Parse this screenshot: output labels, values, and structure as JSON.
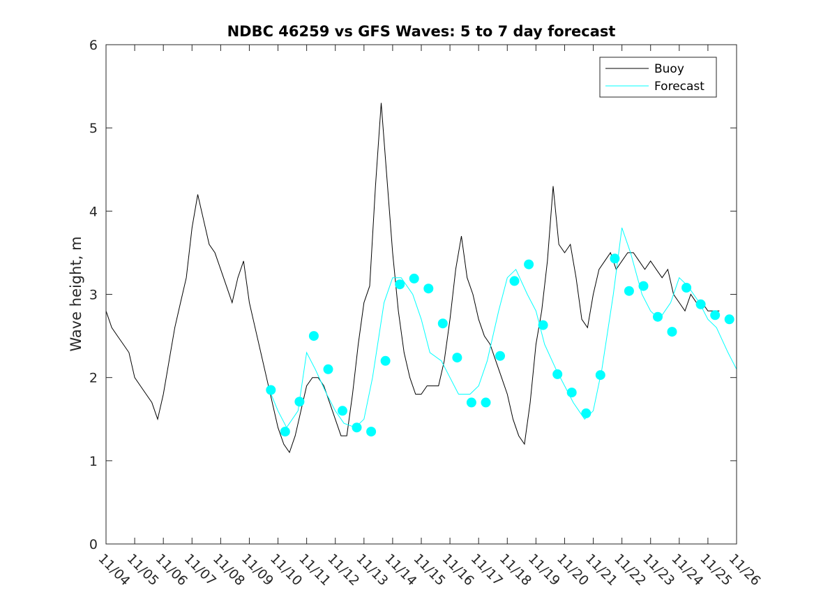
{
  "chart_data": {
    "type": "line",
    "title": "NDBC 46259 vs GFS Waves: 5 to 7 day forecast",
    "xlabel": "",
    "ylabel": "Wave height, m",
    "xlim": [
      0,
      22
    ],
    "ylim": [
      0,
      6
    ],
    "x_tick_values": [
      0,
      1,
      2,
      3,
      4,
      5,
      6,
      7,
      8,
      9,
      10,
      11,
      12,
      13,
      14,
      15,
      16,
      17,
      18,
      19,
      20,
      21,
      22
    ],
    "x_tick_labels": [
      "11/04",
      "11/05",
      "11/06",
      "11/07",
      "11/08",
      "11/09",
      "11/10",
      "11/11",
      "11/12",
      "11/13",
      "11/14",
      "11/15",
      "11/16",
      "11/17",
      "11/18",
      "11/19",
      "11/20",
      "11/21",
      "11/22",
      "11/23",
      "11/24",
      "11/25",
      "11/26"
    ],
    "y_ticks": [
      0,
      1,
      2,
      3,
      4,
      5,
      6
    ],
    "x_unit": "days since 11/04 00:00",
    "legend": {
      "position": "top-right",
      "entries": [
        {
          "label": "Buoy",
          "color": "#000000"
        },
        {
          "label": "Forecast",
          "color": "#00FFFF"
        }
      ]
    },
    "series": [
      {
        "name": "Buoy",
        "color": "#000000",
        "x": [
          0,
          0.2,
          0.4,
          0.6,
          0.8,
          1.0,
          1.2,
          1.4,
          1.6,
          1.8,
          2.0,
          2.2,
          2.4,
          2.6,
          2.8,
          3.0,
          3.2,
          3.4,
          3.6,
          3.8,
          4.0,
          4.2,
          4.4,
          4.6,
          4.8,
          5.0,
          5.2,
          5.4,
          5.6,
          5.8,
          6.0,
          6.2,
          6.4,
          6.6,
          6.8,
          7.0,
          7.2,
          7.4,
          7.6,
          7.8,
          8.0,
          8.2,
          8.4,
          8.6,
          8.8,
          9.0,
          9.2,
          9.4,
          9.6,
          9.8,
          10.0,
          10.2,
          10.4,
          10.6,
          10.8,
          11.0,
          11.2,
          11.4,
          11.6,
          11.8,
          12.0,
          12.2,
          12.4,
          12.6,
          12.8,
          13.0,
          13.2,
          13.4,
          13.6,
          13.8,
          14.0,
          14.2,
          14.4,
          14.6,
          14.8,
          15.0,
          15.2,
          15.4,
          15.6,
          15.8,
          16.0,
          16.2,
          16.4,
          16.6,
          16.8,
          17.0,
          17.2,
          17.4,
          17.6,
          17.8,
          18.0,
          18.2,
          18.4,
          18.6,
          18.8,
          19.0,
          19.2,
          19.4,
          19.6,
          19.8,
          20.0,
          20.2,
          20.4,
          20.6,
          20.8,
          21.0,
          21.2,
          21.4
        ],
        "y": [
          2.8,
          2.6,
          2.5,
          2.4,
          2.3,
          2.0,
          1.9,
          1.8,
          1.7,
          1.5,
          1.8,
          2.2,
          2.6,
          2.9,
          3.2,
          3.8,
          4.2,
          3.9,
          3.6,
          3.5,
          3.3,
          3.1,
          2.9,
          3.2,
          3.4,
          2.9,
          2.6,
          2.3,
          2.0,
          1.7,
          1.4,
          1.2,
          1.1,
          1.3,
          1.6,
          1.9,
          2.0,
          2.0,
          1.9,
          1.7,
          1.5,
          1.3,
          1.3,
          1.8,
          2.4,
          2.9,
          3.1,
          4.3,
          5.3,
          4.4,
          3.5,
          2.8,
          2.3,
          2.0,
          1.8,
          1.8,
          1.9,
          1.9,
          1.9,
          2.2,
          2.7,
          3.3,
          3.7,
          3.2,
          3.0,
          2.7,
          2.5,
          2.4,
          2.2,
          2.0,
          1.8,
          1.5,
          1.3,
          1.2,
          1.7,
          2.4,
          2.8,
          3.4,
          4.3,
          3.6,
          3.5,
          3.6,
          3.2,
          2.7,
          2.6,
          3.0,
          3.3,
          3.4,
          3.5,
          3.3,
          3.4,
          3.5,
          3.5,
          3.4,
          3.3,
          3.4,
          3.3,
          3.2,
          3.3,
          3.0,
          2.9,
          2.8,
          3.0,
          2.9,
          2.9,
          2.8,
          2.8,
          2.8
        ]
      },
      {
        "name": "Forecast",
        "color": "#00FFFF",
        "x": [
          5.7,
          6.0,
          6.3,
          6.7,
          7.0,
          7.3,
          7.7,
          8.0,
          8.3,
          8.7,
          9.0,
          9.3,
          9.7,
          10.0,
          10.3,
          10.7,
          11.0,
          11.3,
          11.7,
          12.0,
          12.3,
          12.7,
          13.0,
          13.3,
          13.7,
          14.0,
          14.3,
          14.7,
          15.0,
          15.3,
          15.7,
          16.0,
          16.3,
          16.7,
          17.0,
          17.3,
          17.7,
          18.0,
          18.3,
          18.7,
          19.0,
          19.3,
          19.7,
          20.0,
          20.3,
          20.7,
          21.0,
          21.3,
          21.7,
          22.0
        ],
        "y": [
          1.85,
          1.6,
          1.4,
          1.6,
          2.3,
          2.1,
          1.8,
          1.6,
          1.45,
          1.4,
          1.5,
          2.0,
          2.9,
          3.2,
          3.2,
          3.0,
          2.7,
          2.3,
          2.2,
          2.0,
          1.8,
          1.8,
          1.9,
          2.2,
          2.8,
          3.2,
          3.3,
          3.0,
          2.8,
          2.4,
          2.1,
          1.9,
          1.7,
          1.5,
          1.6,
          2.1,
          3.0,
          3.8,
          3.5,
          3.0,
          2.8,
          2.7,
          2.9,
          3.2,
          3.1,
          2.9,
          2.7,
          2.6,
          2.3,
          2.1
        ]
      }
    ],
    "forecast_markers": {
      "color": "#00FFFF",
      "x": [
        5.75,
        6.25,
        6.75,
        7.25,
        7.75,
        8.25,
        8.75,
        9.25,
        9.75,
        10.25,
        10.75,
        11.25,
        11.75,
        12.25,
        12.75,
        13.25,
        13.75,
        14.25,
        14.75,
        15.25,
        15.75,
        16.25,
        16.75,
        17.25,
        17.75,
        18.25,
        18.75,
        19.25,
        19.75,
        20.25,
        20.75,
        21.25,
        21.75
      ],
      "y": [
        1.85,
        1.35,
        1.71,
        2.5,
        2.1,
        1.6,
        1.4,
        1.35,
        2.2,
        3.12,
        3.19,
        3.07,
        2.65,
        2.24,
        1.7,
        1.7,
        2.26,
        3.16,
        3.36,
        2.63,
        2.04,
        1.82,
        1.57,
        2.03,
        3.43,
        3.04,
        3.1,
        2.73,
        2.55,
        3.08,
        2.88,
        2.75,
        2.7
      ]
    }
  }
}
